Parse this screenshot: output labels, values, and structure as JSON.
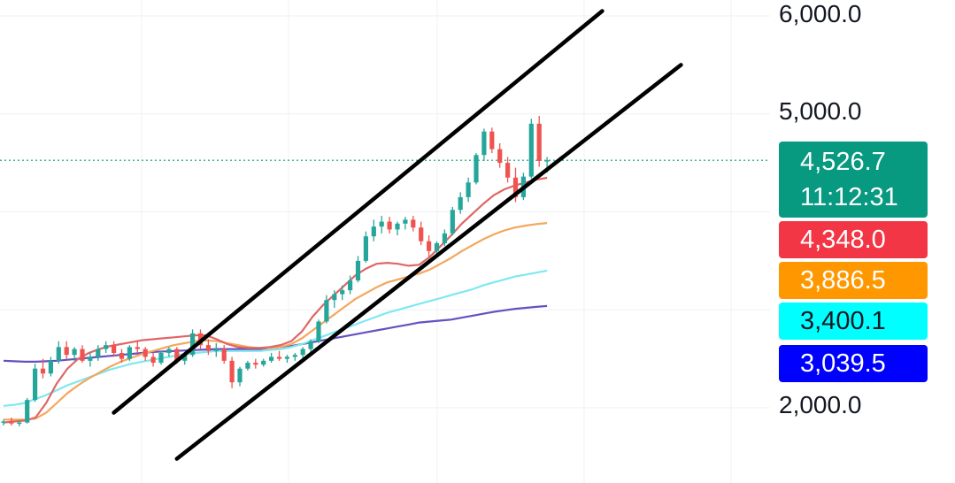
{
  "chart_data": {
    "type": "candlestick",
    "y_axis": {
      "ticks": [
        2000,
        3000,
        4000,
        5000,
        6000
      ],
      "tick_labels": [
        "2,000.0",
        "5,000.0",
        "6,000.0"
      ],
      "range": [
        1700,
        6300
      ],
      "position": "right"
    },
    "grid": true,
    "current_price": {
      "value": 4526.7,
      "label": "4,526.7",
      "countdown": "11:12:31",
      "color": "#089981"
    },
    "moving_averages": [
      {
        "last": 4348.0,
        "label": "4,348.0",
        "color": "#f23645",
        "line_color": "#e06666",
        "values": [
          1850,
          1860,
          1870,
          1900,
          2050,
          2250,
          2400,
          2500,
          2560,
          2600,
          2630,
          2650,
          2670,
          2690,
          2700,
          2710,
          2720,
          2730,
          2740,
          2740,
          2700,
          2650,
          2620,
          2610,
          2610,
          2620,
          2640,
          2680,
          2780,
          2930,
          3050,
          3150,
          3250,
          3350,
          3420,
          3470,
          3480,
          3470,
          3450,
          3460,
          3540,
          3650,
          3760,
          3880,
          3980,
          4080,
          4170,
          4230,
          4270,
          4300,
          4330,
          4348
        ]
      },
      {
        "last": 3886.5,
        "label": "3,886.5",
        "color": "#ff9800",
        "line_color": "#f5a65b",
        "values": [
          1880,
          1880,
          1880,
          1890,
          1950,
          2050,
          2150,
          2230,
          2300,
          2360,
          2420,
          2470,
          2510,
          2550,
          2580,
          2610,
          2640,
          2660,
          2680,
          2690,
          2680,
          2660,
          2640,
          2620,
          2610,
          2610,
          2620,
          2650,
          2710,
          2790,
          2870,
          2950,
          3030,
          3110,
          3170,
          3230,
          3280,
          3310,
          3340,
          3370,
          3410,
          3470,
          3530,
          3600,
          3660,
          3720,
          3770,
          3810,
          3840,
          3860,
          3875,
          3886.5
        ]
      },
      {
        "last": 3400.1,
        "label": "3,400.1",
        "color": "#00ffff",
        "line_color": "#7ee8f0",
        "values": [
          2020,
          2030,
          2050,
          2090,
          2130,
          2180,
          2230,
          2270,
          2310,
          2350,
          2390,
          2420,
          2450,
          2470,
          2490,
          2510,
          2530,
          2550,
          2560,
          2570,
          2580,
          2580,
          2580,
          2580,
          2580,
          2590,
          2600,
          2620,
          2650,
          2690,
          2730,
          2770,
          2810,
          2850,
          2890,
          2930,
          2970,
          3000,
          3030,
          3060,
          3090,
          3120,
          3150,
          3180,
          3210,
          3250,
          3280,
          3310,
          3340,
          3360,
          3380,
          3400.1
        ]
      },
      {
        "last": 3039.5,
        "label": "3,039.5",
        "color": "#0000ff",
        "line_color": "#6650c0",
        "values": [
          2480,
          2475,
          2470,
          2470,
          2475,
          2480,
          2490,
          2500,
          2510,
          2520,
          2530,
          2540,
          2550,
          2560,
          2570,
          2575,
          2580,
          2585,
          2590,
          2595,
          2600,
          2600,
          2600,
          2600,
          2600,
          2610,
          2620,
          2630,
          2650,
          2670,
          2690,
          2710,
          2730,
          2750,
          2770,
          2790,
          2810,
          2830,
          2850,
          2870,
          2880,
          2890,
          2900,
          2920,
          2940,
          2960,
          2980,
          2995,
          3010,
          3020,
          3030,
          3039.5
        ]
      }
    ],
    "candles": [
      [
        1850,
        1880,
        1820,
        1860
      ],
      [
        1860,
        1900,
        1820,
        1840
      ],
      [
        1840,
        1870,
        1810,
        1850
      ],
      [
        1850,
        2100,
        1840,
        2080
      ],
      [
        2080,
        2450,
        2060,
        2400
      ],
      [
        2400,
        2500,
        2300,
        2350
      ],
      [
        2350,
        2520,
        2320,
        2480
      ],
      [
        2480,
        2680,
        2450,
        2620
      ],
      [
        2620,
        2680,
        2500,
        2540
      ],
      [
        2540,
        2620,
        2480,
        2600
      ],
      [
        2600,
        2640,
        2460,
        2480
      ],
      [
        2480,
        2560,
        2420,
        2520
      ],
      [
        2520,
        2640,
        2480,
        2600
      ],
      [
        2600,
        2680,
        2560,
        2640
      ],
      [
        2640,
        2680,
        2520,
        2560
      ],
      [
        2560,
        2600,
        2460,
        2500
      ],
      [
        2500,
        2640,
        2480,
        2620
      ],
      [
        2620,
        2680,
        2560,
        2600
      ],
      [
        2600,
        2620,
        2480,
        2520
      ],
      [
        2520,
        2560,
        2420,
        2460
      ],
      [
        2460,
        2580,
        2440,
        2560
      ],
      [
        2560,
        2620,
        2520,
        2600
      ],
      [
        2600,
        2620,
        2450,
        2480
      ],
      [
        2480,
        2560,
        2440,
        2540
      ],
      [
        2540,
        2800,
        2520,
        2760
      ],
      [
        2760,
        2800,
        2600,
        2640
      ],
      [
        2640,
        2700,
        2540,
        2580
      ],
      [
        2580,
        2660,
        2520,
        2600
      ],
      [
        2600,
        2640,
        2450,
        2480
      ],
      [
        2480,
        2520,
        2200,
        2260
      ],
      [
        2260,
        2420,
        2220,
        2400
      ],
      [
        2400,
        2480,
        2380,
        2460
      ],
      [
        2460,
        2500,
        2400,
        2440
      ],
      [
        2440,
        2500,
        2420,
        2480
      ],
      [
        2480,
        2560,
        2460,
        2520
      ],
      [
        2520,
        2580,
        2480,
        2500
      ],
      [
        2500,
        2540,
        2460,
        2520
      ],
      [
        2520,
        2560,
        2480,
        2540
      ],
      [
        2540,
        2620,
        2500,
        2600
      ],
      [
        2600,
        2700,
        2560,
        2680
      ],
      [
        2680,
        2900,
        2660,
        2880
      ],
      [
        2880,
        3150,
        2860,
        3100
      ],
      [
        3100,
        3200,
        3020,
        3160
      ],
      [
        3160,
        3250,
        3100,
        3200
      ],
      [
        3200,
        3350,
        3160,
        3300
      ],
      [
        3300,
        3550,
        3280,
        3500
      ],
      [
        3500,
        3800,
        3480,
        3750
      ],
      [
        3750,
        3920,
        3700,
        3850
      ],
      [
        3850,
        3960,
        3780,
        3900
      ],
      [
        3900,
        3950,
        3780,
        3820
      ],
      [
        3820,
        3900,
        3760,
        3880
      ],
      [
        3880,
        3950,
        3820,
        3920
      ],
      [
        3920,
        3960,
        3800,
        3840
      ],
      [
        3840,
        3900,
        3660,
        3700
      ],
      [
        3700,
        3760,
        3540,
        3600
      ],
      [
        3600,
        3700,
        3560,
        3680
      ],
      [
        3680,
        3820,
        3650,
        3780
      ],
      [
        3780,
        4050,
        3760,
        4020
      ],
      [
        4020,
        4200,
        3980,
        4150
      ],
      [
        4150,
        4350,
        4100,
        4300
      ],
      [
        4300,
        4600,
        4280,
        4580
      ],
      [
        4580,
        4850,
        4520,
        4820
      ],
      [
        4820,
        4860,
        4600,
        4640
      ],
      [
        4640,
        4700,
        4450,
        4500
      ],
      [
        4500,
        4560,
        4300,
        4350
      ],
      [
        4350,
        4450,
        4100,
        4150
      ],
      [
        4150,
        4400,
        4120,
        4360
      ],
      [
        4360,
        4950,
        4340,
        4900
      ],
      [
        4900,
        4980,
        4460,
        4520
      ],
      [
        4520,
        4560,
        4400,
        4526.7
      ]
    ],
    "trend_channel": [
      {
        "start": {
          "index": 14,
          "price": 1950
        },
        "end": {
          "index": 76,
          "price": 6050
        }
      },
      {
        "start": {
          "index": 22,
          "price": 1480
        },
        "end": {
          "index": 86,
          "price": 5500
        }
      }
    ]
  }
}
